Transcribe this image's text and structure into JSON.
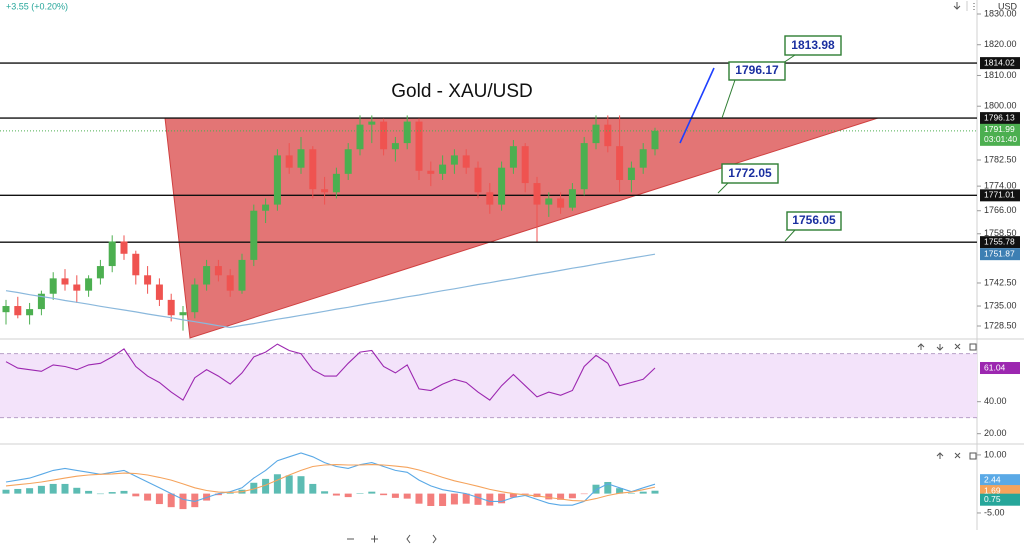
{
  "chart_data": [
    {
      "type": "candlestick",
      "title": "Gold - XAU/USD",
      "change": "+3.55 (+0.20%)",
      "currency": "USD",
      "up_color": "#4caf50",
      "down_color": "#ef5350",
      "ohlc": [
        [
          1733,
          1737,
          1729,
          1735
        ],
        [
          1735,
          1738,
          1731,
          1732
        ],
        [
          1732,
          1736,
          1729,
          1734
        ],
        [
          1734,
          1740,
          1732,
          1739
        ],
        [
          1739,
          1746,
          1737,
          1744
        ],
        [
          1744,
          1747,
          1740,
          1742
        ],
        [
          1742,
          1745,
          1736,
          1740
        ],
        [
          1740,
          1745,
          1738,
          1744
        ],
        [
          1744,
          1750,
          1742,
          1748
        ],
        [
          1748,
          1758,
          1746,
          1756
        ],
        [
          1756,
          1758,
          1750,
          1752
        ],
        [
          1752,
          1753,
          1742,
          1745
        ],
        [
          1745,
          1748,
          1739,
          1742
        ],
        [
          1742,
          1744,
          1735,
          1737
        ],
        [
          1737,
          1739,
          1730,
          1732
        ],
        [
          1732,
          1735,
          1727,
          1733
        ],
        [
          1733,
          1744,
          1731,
          1742
        ],
        [
          1742,
          1750,
          1740,
          1748
        ],
        [
          1748,
          1750,
          1743,
          1745
        ],
        [
          1745,
          1747,
          1738,
          1740
        ],
        [
          1740,
          1752,
          1739,
          1750
        ],
        [
          1750,
          1768,
          1748,
          1766
        ],
        [
          1766,
          1770,
          1762,
          1768
        ],
        [
          1768,
          1786,
          1766,
          1784
        ],
        [
          1784,
          1788,
          1778,
          1780
        ],
        [
          1780,
          1790,
          1778,
          1786
        ],
        [
          1786,
          1787,
          1770,
          1773
        ],
        [
          1773,
          1777,
          1768,
          1772
        ],
        [
          1772,
          1780,
          1770,
          1778
        ],
        [
          1778,
          1788,
          1776,
          1786
        ],
        [
          1786,
          1797,
          1784,
          1794
        ],
        [
          1794,
          1797,
          1788,
          1795
        ],
        [
          1795,
          1796,
          1784,
          1786
        ],
        [
          1786,
          1790,
          1782,
          1788
        ],
        [
          1788,
          1797,
          1786,
          1795
        ],
        [
          1795,
          1796,
          1776,
          1779
        ],
        [
          1779,
          1782,
          1774,
          1778
        ],
        [
          1778,
          1784,
          1776,
          1781
        ],
        [
          1781,
          1786,
          1778,
          1784
        ],
        [
          1784,
          1786,
          1778,
          1780
        ],
        [
          1780,
          1782,
          1770,
          1772
        ],
        [
          1772,
          1775,
          1765,
          1768
        ],
        [
          1768,
          1782,
          1766,
          1780
        ],
        [
          1780,
          1789,
          1778,
          1787
        ],
        [
          1787,
          1788,
          1772,
          1775
        ],
        [
          1775,
          1777,
          1756,
          1768
        ],
        [
          1768,
          1772,
          1764,
          1770
        ],
        [
          1770,
          1772,
          1765,
          1767
        ],
        [
          1767,
          1775,
          1766,
          1773
        ],
        [
          1773,
          1790,
          1771,
          1788
        ],
        [
          1788,
          1797,
          1786,
          1794
        ],
        [
          1794,
          1797,
          1785,
          1787
        ],
        [
          1787,
          1797,
          1772,
          1776
        ],
        [
          1776,
          1782,
          1772,
          1780
        ],
        [
          1780,
          1788,
          1778,
          1786
        ],
        [
          1786,
          1793,
          1784,
          1791.99
        ]
      ],
      "ma": {
        "color": "#8ab8dc",
        "values": [
          1740,
          1739.4,
          1738.7,
          1738.1,
          1737.5,
          1736.8,
          1736.2,
          1735.6,
          1734.9,
          1734.3,
          1733.7,
          1733.1,
          1732.4,
          1731.8,
          1731.2,
          1730.5,
          1729.9,
          1729.3,
          1728.6,
          1728,
          1728.7,
          1729.3,
          1730,
          1730.7,
          1731.3,
          1732,
          1732.6,
          1733.3,
          1734,
          1734.6,
          1735.3,
          1736,
          1736.6,
          1737.3,
          1738,
          1738.6,
          1739.3,
          1740,
          1740.6,
          1741.3,
          1742,
          1742.6,
          1743.3,
          1743.9,
          1744.6,
          1745.3,
          1745.9,
          1746.6,
          1747.3,
          1747.9,
          1748.6,
          1749.3,
          1749.9,
          1750.6,
          1751.2,
          1751.87
        ]
      },
      "countdown": "03:01:40",
      "levels": [
        1814.02,
        1796.13,
        1771.01,
        1755.78
      ],
      "callouts": [
        1813.98,
        1796.17,
        1772.05,
        1756.05
      ],
      "ylim": [
        1724.6,
        1834.55
      ],
      "yticks": [
        {
          "value": 1830,
          "label": "1830.00"
        },
        {
          "value": 1820,
          "label": "1820.00"
        },
        {
          "value": 1810,
          "label": "1810.00"
        },
        {
          "value": 1800,
          "label": "1800.00"
        },
        {
          "value": 1782.5,
          "label": "1782.50"
        },
        {
          "value": 1774,
          "label": "1774.00"
        },
        {
          "value": 1766,
          "label": "1766.00"
        },
        {
          "value": 1758.5,
          "label": "1758.50"
        },
        {
          "value": 1742.5,
          "label": "1742.50"
        },
        {
          "value": 1735,
          "label": "1735.00"
        },
        {
          "value": 1728.5,
          "label": "1728.50"
        }
      ]
    },
    {
      "type": "line",
      "color": "#9c27b0",
      "band": [
        30,
        70
      ],
      "values": [
        65,
        61,
        60,
        59,
        63,
        62,
        60,
        63,
        64,
        68,
        73,
        62,
        56,
        52,
        46,
        41,
        55,
        60,
        56,
        51,
        58,
        68,
        71,
        76,
        72,
        70,
        60,
        56,
        56,
        64,
        71,
        72,
        62,
        58,
        63,
        48,
        47,
        51,
        54,
        52,
        46,
        41,
        50,
        57,
        50,
        43,
        46,
        44,
        47,
        62,
        69,
        64,
        50,
        52,
        54,
        61.04
      ],
      "ylim": [
        14.8,
        78.55
      ],
      "yticks": [
        {
          "value": 40,
          "label": "40.00"
        },
        {
          "value": 20,
          "label": "20.00"
        }
      ]
    },
    {
      "type": "macd",
      "macd_color": "#5aa9e6",
      "signal_color": "#f5a35c",
      "up_color": "#26a69a",
      "down_color": "#ef5350",
      "macd": [
        3,
        3.5,
        4,
        5,
        6,
        6.5,
        6,
        5.5,
        5,
        5.5,
        6,
        4.5,
        3,
        1.5,
        0,
        -1.5,
        -2,
        -1,
        0,
        0.5,
        1.5,
        4,
        6,
        8.5,
        9.5,
        10.5,
        9.5,
        8,
        7,
        6.5,
        7.5,
        8,
        7,
        6,
        5.5,
        3.5,
        2,
        1,
        0.5,
        0,
        -1,
        -2,
        -2,
        -1,
        -0.5,
        -1.5,
        -2.5,
        -3,
        -3,
        -2,
        1,
        2.5,
        1.5,
        0.5,
        1.5,
        2.44
      ],
      "signal": [
        2,
        2.3,
        2.6,
        3,
        3.5,
        4,
        4.5,
        4.8,
        5,
        5.1,
        5.3,
        5.2,
        4.8,
        4.2,
        3.5,
        2.5,
        1.5,
        0.8,
        0.4,
        0.3,
        0.5,
        1.2,
        2.2,
        3.5,
        4.8,
        6,
        7,
        7.4,
        7.5,
        7.4,
        7.4,
        7.5,
        7.4,
        7.1,
        6.8,
        6.1,
        5.2,
        4.2,
        3.3,
        2.6,
        1.9,
        1.1,
        0.5,
        0,
        -0.3,
        -0.6,
        -1,
        -1.4,
        -1.8,
        -1.9,
        -1.3,
        -0.5,
        0.1,
        0.4,
        1,
        1.69
      ],
      "histogram": [
        1,
        1.2,
        1.4,
        2,
        2.5,
        2.5,
        1.5,
        0.7,
        0,
        0.4,
        0.7,
        -0.7,
        -1.8,
        -2.7,
        -3.5,
        -4,
        -3.5,
        -1.8,
        -0.4,
        0.2,
        1,
        2.8,
        3.8,
        5,
        4.7,
        4.5,
        2.5,
        0.6,
        -0.5,
        -0.9,
        0.1,
        0.5,
        -0.4,
        -1.1,
        -1.3,
        -2.6,
        -3.2,
        -3.2,
        -2.8,
        -2.6,
        -2.9,
        -3.1,
        -2.5,
        -1,
        -0.2,
        -0.9,
        -1.5,
        -1.6,
        -1.2,
        -0.1,
        2.3,
        3,
        1.4,
        0.1,
        0.5,
        0.75
      ],
      "ylim": [
        -9.66,
        12.3
      ],
      "yticks": [
        {
          "value": 10,
          "label": "10.00"
        },
        {
          "value": -5,
          "label": "-5.00"
        }
      ]
    }
  ]
}
